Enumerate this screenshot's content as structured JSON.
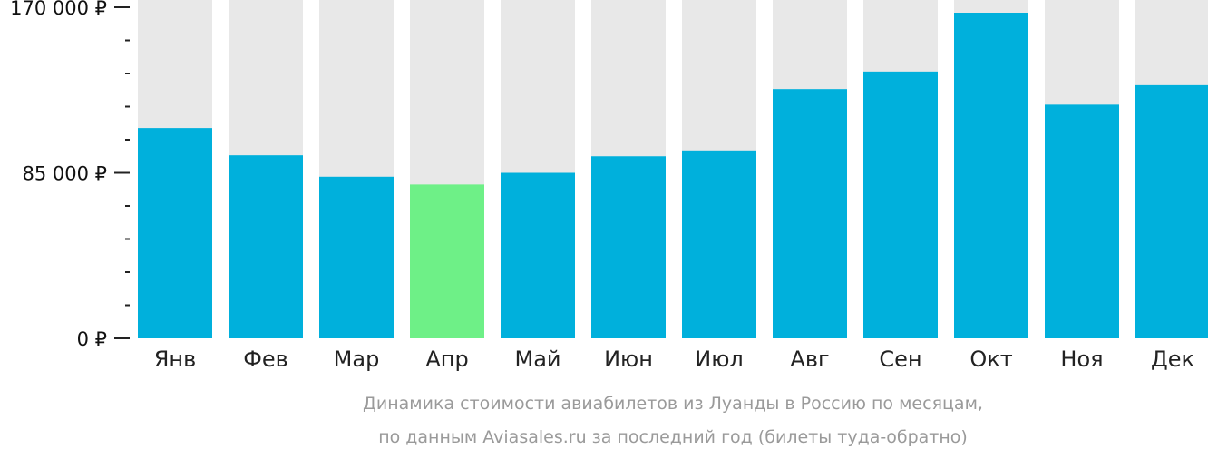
{
  "chart_data": {
    "type": "bar",
    "categories": [
      "Янв",
      "Фев",
      "Мар",
      "Апр",
      "Май",
      "Июн",
      "Июл",
      "Авг",
      "Сен",
      "Окт",
      "Ноя",
      "Дек"
    ],
    "values": [
      108000,
      94000,
      83000,
      79000,
      85000,
      93500,
      96500,
      128000,
      137000,
      171000,
      120000,
      130000
    ],
    "ylim": [
      0,
      170000
    ],
    "yticks": [
      {
        "value": 0,
        "label": "0 ₽"
      },
      {
        "value": 85000,
        "label": "85 000 ₽"
      },
      {
        "value": 170000,
        "label": "170 000 ₽"
      }
    ],
    "minor_ticks": [
      17000,
      34000,
      51000,
      68000,
      102000,
      119000,
      136000,
      153000
    ],
    "highlight_index": 3,
    "colors": {
      "bar": "#00b0dc",
      "highlight": "#6ef087",
      "track": "#e8e8e8",
      "axis": "#222222"
    }
  },
  "caption": {
    "line1": "Динамика стоимости авиабилетов из Луанды в Россию по месяцам,",
    "line2": "по данным Aviasales.ru за последний год (билеты туда-обратно)"
  }
}
